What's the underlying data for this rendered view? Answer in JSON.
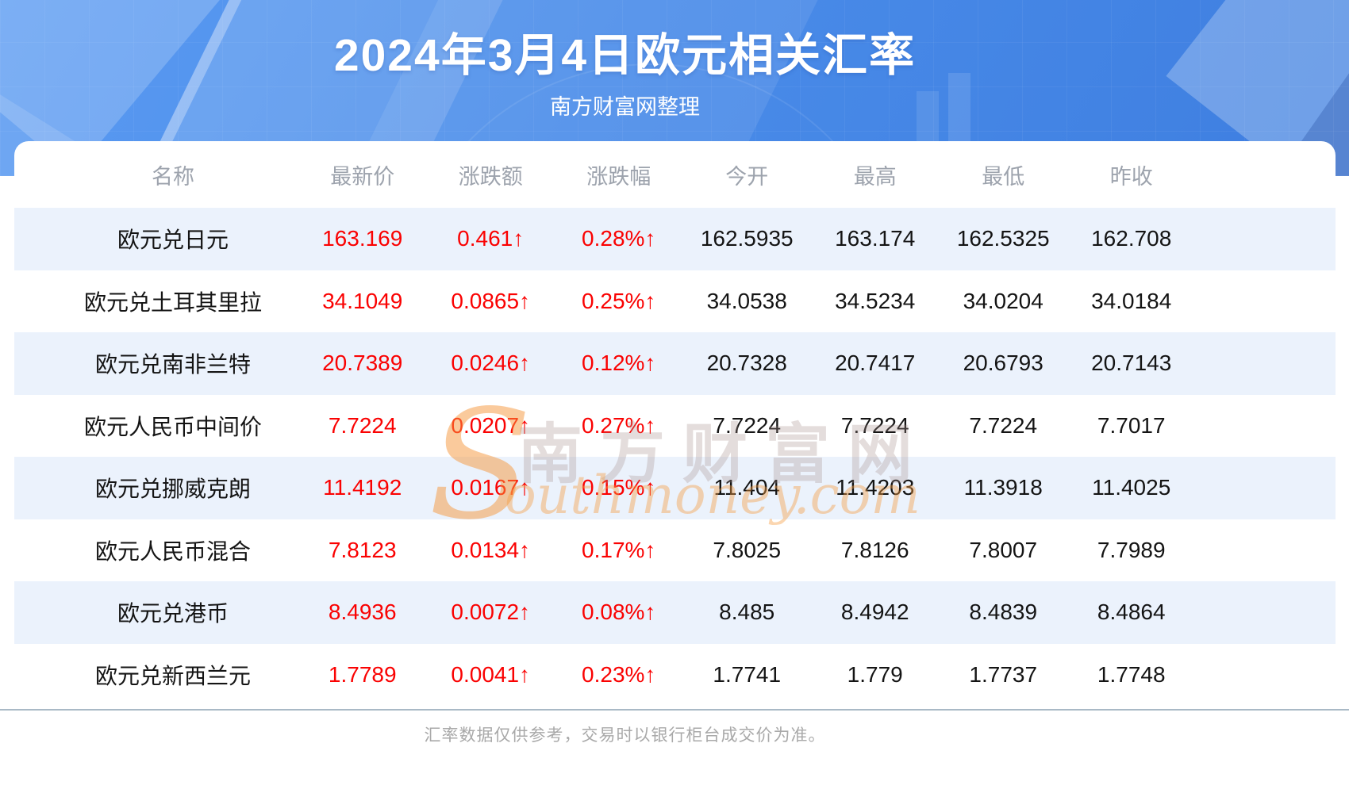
{
  "header": {
    "title": "2024年3月4日欧元相关汇率",
    "subtitle": "南方财富网整理"
  },
  "chart_data": {
    "type": "table",
    "title": "2024年3月4日欧元相关汇率",
    "subtitle": "南方财富网整理",
    "columns": [
      "名称",
      "最新价",
      "涨跌额",
      "涨跌幅",
      "今开",
      "最高",
      "最低",
      "昨收"
    ],
    "rows": [
      [
        "欧元兑日元",
        "163.169",
        "0.461↑",
        "0.28%↑",
        "162.5935",
        "163.174",
        "162.5325",
        "162.708"
      ],
      [
        "欧元兑土耳其里拉",
        "34.1049",
        "0.0865↑",
        "0.25%↑",
        "34.0538",
        "34.5234",
        "34.0204",
        "34.0184"
      ],
      [
        "欧元兑南非兰特",
        "20.7389",
        "0.0246↑",
        "0.12%↑",
        "20.7328",
        "20.7417",
        "20.6793",
        "20.7143"
      ],
      [
        "欧元人民币中间价",
        "7.7224",
        "0.0207↑",
        "0.27%↑",
        "7.7224",
        "7.7224",
        "7.7224",
        "7.7017"
      ],
      [
        "欧元兑挪威克朗",
        "11.4192",
        "0.0167↑",
        "0.15%↑",
        "11.404",
        "11.4203",
        "11.3918",
        "11.4025"
      ],
      [
        "欧元人民币混合",
        "7.8123",
        "0.0134↑",
        "0.17%↑",
        "7.8025",
        "7.8126",
        "7.8007",
        "7.7989"
      ],
      [
        "欧元兑港币",
        "8.4936",
        "0.0072↑",
        "0.08%↑",
        "8.485",
        "8.4942",
        "8.4839",
        "8.4864"
      ],
      [
        "欧元兑新西兰元",
        "1.7789",
        "0.0041↑",
        "0.23%↑",
        "1.7741",
        "1.779",
        "1.7737",
        "1.7748"
      ]
    ]
  },
  "watermark": {
    "brand_initial": "S",
    "brand_cn": "南方财富网",
    "brand_en": "outhmoney.com"
  },
  "footer": {
    "disclaimer": "汇率数据仅供参考，交易时以银行柜台成交价为准。"
  },
  "colors": {
    "banner_blue": "#4a8ce9",
    "up_red": "#fa0202",
    "stripe_blue": "#ebf2fc",
    "header_gray": "#9da3ad"
  }
}
